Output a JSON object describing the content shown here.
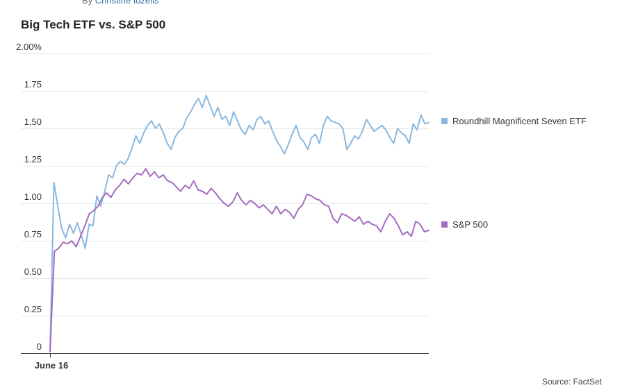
{
  "byline": {
    "prefix": "By",
    "author": "Christine Idzelis"
  },
  "source": "Source: FactSet",
  "chart_data": {
    "type": "line",
    "title": "Big Tech ETF vs. S&P 500",
    "xlabel": "",
    "ylabel": "",
    "ylim": [
      0,
      2.0
    ],
    "yticks": [
      0,
      0.25,
      0.5,
      0.75,
      1.0,
      1.25,
      1.5,
      1.75,
      2.0
    ],
    "yticklabels": [
      "0",
      "0.25",
      "0.50",
      "0.75",
      "1.00",
      "1.25",
      "1.50",
      "1.75",
      "2.00%"
    ],
    "xticklabels": [
      "June 16"
    ],
    "grid": true,
    "legend": "right, inline with series end",
    "colors": {
      "etf": "#8ab7df",
      "spx": "#a46cc1",
      "grid": "#e6e6e6",
      "axis": "#333333"
    },
    "series": [
      {
        "name": "Roundhill Magnificent Seven ETF",
        "values": [
          0.01,
          1.14,
          0.98,
          0.83,
          0.77,
          0.86,
          0.8,
          0.87,
          0.79,
          0.7,
          0.86,
          0.85,
          1.05,
          0.98,
          1.08,
          1.19,
          1.17,
          1.25,
          1.28,
          1.26,
          1.3,
          1.37,
          1.45,
          1.4,
          1.47,
          1.52,
          1.55,
          1.5,
          1.53,
          1.47,
          1.4,
          1.36,
          1.44,
          1.48,
          1.5,
          1.57,
          1.61,
          1.66,
          1.7,
          1.64,
          1.72,
          1.65,
          1.58,
          1.64,
          1.56,
          1.58,
          1.52,
          1.61,
          1.55,
          1.49,
          1.46,
          1.52,
          1.49,
          1.56,
          1.58,
          1.53,
          1.55,
          1.48,
          1.42,
          1.38,
          1.33,
          1.39,
          1.46,
          1.52,
          1.44,
          1.41,
          1.36,
          1.44,
          1.46,
          1.4,
          1.52,
          1.58,
          1.55,
          1.54,
          1.53,
          1.5,
          1.36,
          1.4,
          1.45,
          1.43,
          1.48,
          1.56,
          1.52,
          1.48,
          1.5,
          1.52,
          1.49,
          1.44,
          1.4,
          1.5,
          1.47,
          1.45,
          1.4,
          1.53,
          1.49,
          1.59,
          1.53,
          1.54
        ]
      },
      {
        "name": "S&P 500",
        "values": [
          0.01,
          0.68,
          0.7,
          0.74,
          0.73,
          0.75,
          0.71,
          0.78,
          0.85,
          0.93,
          0.95,
          0.98,
          1.04,
          1.07,
          1.04,
          1.09,
          1.12,
          1.16,
          1.13,
          1.17,
          1.2,
          1.19,
          1.23,
          1.18,
          1.21,
          1.17,
          1.19,
          1.15,
          1.14,
          1.11,
          1.08,
          1.12,
          1.1,
          1.15,
          1.09,
          1.08,
          1.06,
          1.1,
          1.07,
          1.03,
          1.0,
          0.98,
          1.01,
          1.07,
          1.02,
          0.99,
          1.02,
          1.0,
          0.97,
          0.99,
          0.96,
          0.93,
          0.98,
          0.93,
          0.96,
          0.94,
          0.9,
          0.96,
          0.99,
          1.06,
          1.05,
          1.03,
          1.02,
          0.99,
          0.98,
          0.9,
          0.87,
          0.93,
          0.92,
          0.9,
          0.88,
          0.91,
          0.86,
          0.88,
          0.86,
          0.85,
          0.81,
          0.88,
          0.93,
          0.9,
          0.85,
          0.79,
          0.81,
          0.78,
          0.88,
          0.86,
          0.81,
          0.82
        ]
      }
    ]
  }
}
